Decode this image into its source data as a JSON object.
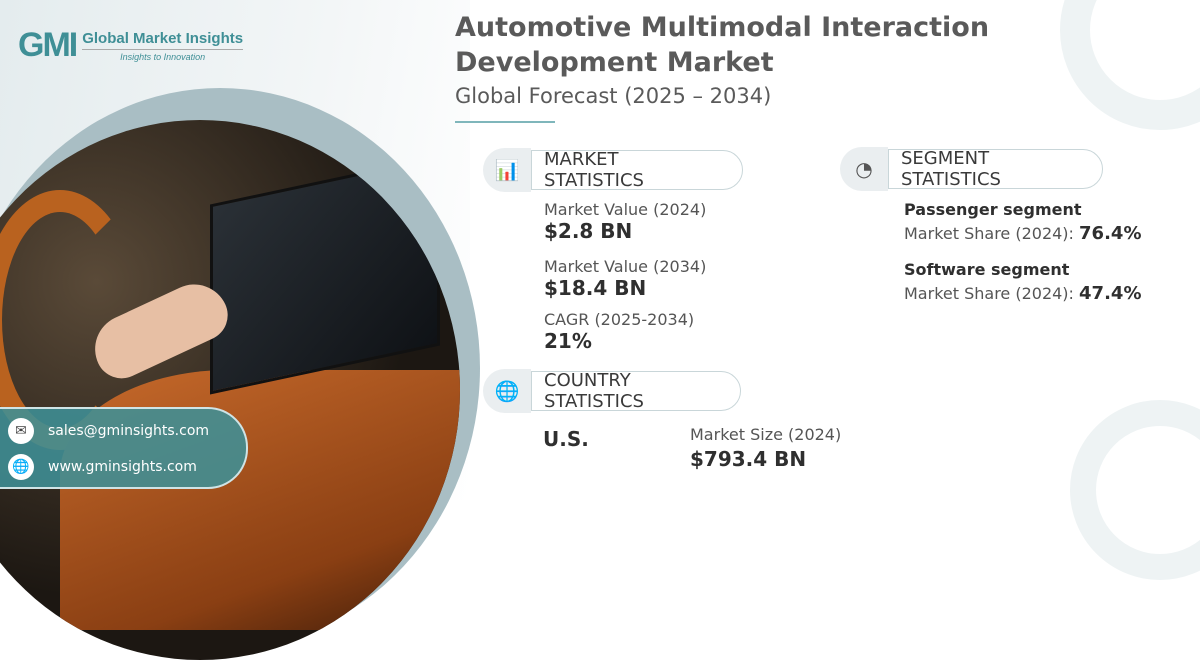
{
  "brand": {
    "name": "Global Market Insights",
    "mark": "GMI",
    "tagline": "Insights to Innovation"
  },
  "header": {
    "title_line1": "Automotive Multimodal Interaction",
    "title_line2": "Development Market",
    "subtitle": "Global Forecast (2025 – 2034)"
  },
  "market_statistics": {
    "heading": "MARKET STATISTICS",
    "items": [
      {
        "label": "Market Value (2024)",
        "value": "$2.8 BN"
      },
      {
        "label": "Market Value (2034)",
        "value": "$18.4 BN"
      },
      {
        "label": "CAGR (2025-2034)",
        "value": "21%"
      }
    ]
  },
  "segment_statistics": {
    "heading": "SEGMENT STATISTICS",
    "items": [
      {
        "name": "Passenger segment",
        "label": "Market Share (2024):",
        "value": "76.4%"
      },
      {
        "name": "Software segment",
        "label": "Market Share (2024):",
        "value": "47.4%"
      }
    ]
  },
  "country_statistics": {
    "heading": "COUNTRY STATISTICS",
    "country": "U.S.",
    "label": "Market Size (2024)",
    "value": "$793.4 BN"
  },
  "contact": {
    "email": "sales@gminsights.com",
    "website": "www.gminsights.com"
  },
  "colors": {
    "accent": "#3f8f96",
    "text": "#4a4a4a"
  }
}
